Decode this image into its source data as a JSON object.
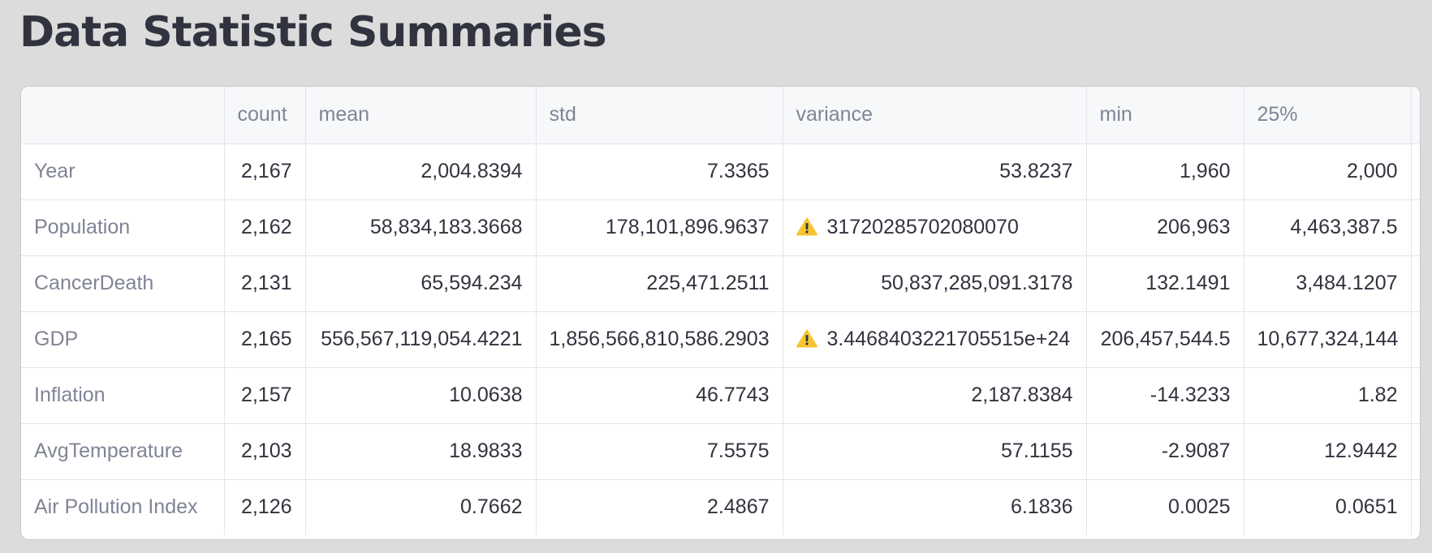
{
  "page": {
    "title": "Data Statistic Summaries"
  },
  "table": {
    "columns": [
      "count",
      "mean",
      "std",
      "variance",
      "min",
      "25%"
    ],
    "rows": [
      {
        "label": "Year",
        "cells": [
          {
            "value": "2,167"
          },
          {
            "value": "2,004.8394"
          },
          {
            "value": "7.3365"
          },
          {
            "value": "53.8237"
          },
          {
            "value": "1,960"
          },
          {
            "value": "2,000"
          }
        ]
      },
      {
        "label": "Population",
        "cells": [
          {
            "value": "2,162"
          },
          {
            "value": "58,834,183.3668"
          },
          {
            "value": "178,101,896.9637"
          },
          {
            "value": "31720285702080070",
            "warning": true
          },
          {
            "value": "206,963"
          },
          {
            "value": "4,463,387.5"
          }
        ]
      },
      {
        "label": "CancerDeath",
        "cells": [
          {
            "value": "2,131"
          },
          {
            "value": "65,594.234"
          },
          {
            "value": "225,471.2511"
          },
          {
            "value": "50,837,285,091.3178"
          },
          {
            "value": "132.1491"
          },
          {
            "value": "3,484.1207"
          }
        ]
      },
      {
        "label": "GDP",
        "cells": [
          {
            "value": "2,165"
          },
          {
            "value": "556,567,119,054.4221"
          },
          {
            "value": "1,856,566,810,586.2903"
          },
          {
            "value": "3.4468403221705515e+24",
            "warning": true
          },
          {
            "value": "206,457,544.5"
          },
          {
            "value": "10,677,324,144"
          }
        ]
      },
      {
        "label": "Inflation",
        "cells": [
          {
            "value": "2,157"
          },
          {
            "value": "10.0638"
          },
          {
            "value": "46.7743"
          },
          {
            "value": "2,187.8384"
          },
          {
            "value": "-14.3233"
          },
          {
            "value": "1.82"
          }
        ]
      },
      {
        "label": "AvgTemperature",
        "cells": [
          {
            "value": "2,103"
          },
          {
            "value": "18.9833"
          },
          {
            "value": "7.5575"
          },
          {
            "value": "57.1155"
          },
          {
            "value": "-2.9087"
          },
          {
            "value": "12.9442"
          }
        ]
      },
      {
        "label": "Air Pollution Index",
        "cells": [
          {
            "value": "2,126"
          },
          {
            "value": "0.7662"
          },
          {
            "value": "2.4867"
          },
          {
            "value": "6.1836"
          },
          {
            "value": "0.0025"
          },
          {
            "value": "0.0651"
          }
        ]
      }
    ]
  },
  "icons": {
    "warning": "warning-icon"
  },
  "colors": {
    "background": "#dcdcdc",
    "title": "#31333f",
    "header_bg": "#f7f8fa",
    "label_text": "#808495",
    "cell_text": "#31333f",
    "grid": "#e4e5e9",
    "warning_fill": "#f5c430"
  }
}
